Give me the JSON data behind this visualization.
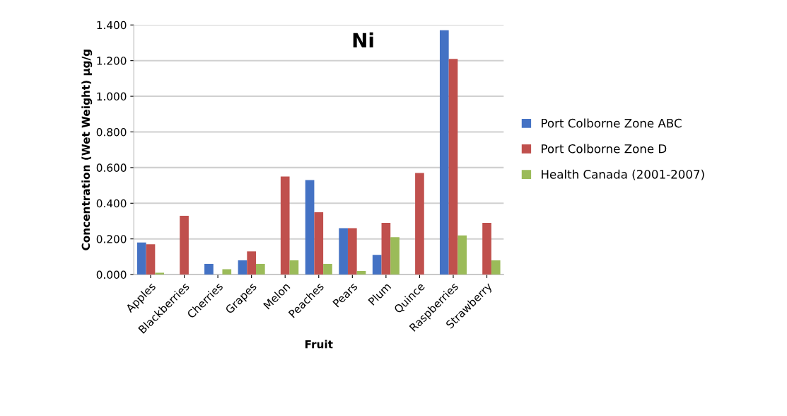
{
  "chart_data": {
    "type": "bar",
    "title": "Ni",
    "xlabel": "Fruit",
    "ylabel": "Concentration (Wet Weight) µg/g",
    "categories": [
      "Apples",
      "Blackberries",
      "Cherries",
      "Grapes",
      "Melon",
      "Peaches",
      "Pears",
      "Plum",
      "Quince",
      "Raspberries",
      "Strawberry"
    ],
    "series": [
      {
        "name": "Port Colborne Zone ABC",
        "color": "#4472c4",
        "values": [
          0.18,
          null,
          0.06,
          0.08,
          null,
          0.53,
          0.26,
          0.11,
          null,
          1.37,
          null
        ]
      },
      {
        "name": "Port Colborne Zone D",
        "color": "#c0504d",
        "values": [
          0.17,
          0.33,
          null,
          0.13,
          0.55,
          0.35,
          0.26,
          0.29,
          0.57,
          1.21,
          0.29
        ]
      },
      {
        "name": "Health Canada (2001-2007)",
        "color": "#9bbb59",
        "values": [
          0.01,
          null,
          0.03,
          0.06,
          0.08,
          0.06,
          0.02,
          0.21,
          null,
          0.22,
          0.08
        ]
      }
    ],
    "ylim": [
      0,
      1.4
    ],
    "yticks": [
      {
        "value": 0,
        "label": "0.000"
      },
      {
        "value": 0.2,
        "label": "0.200"
      },
      {
        "value": 0.4,
        "label": "0.400"
      },
      {
        "value": 0.6,
        "label": "0.600"
      },
      {
        "value": 0.8,
        "label": "0.800"
      },
      {
        "value": 1.0,
        "label": "1.000"
      },
      {
        "value": 1.2,
        "label": "1.200"
      },
      {
        "value": 1.4,
        "label": "1.400"
      }
    ],
    "grid": "y",
    "legend": "right"
  }
}
